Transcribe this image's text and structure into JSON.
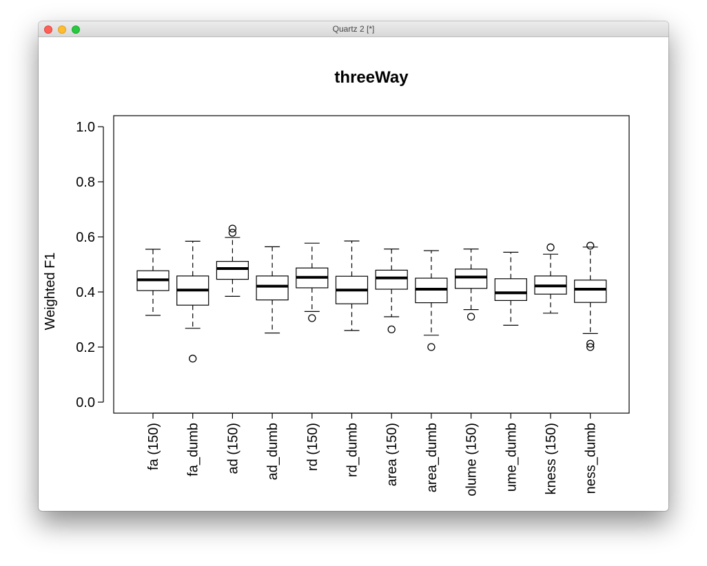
{
  "window": {
    "title": "Quartz 2 [*]"
  },
  "chart_data": {
    "type": "boxplot",
    "title": "threeWay",
    "xlabel": "",
    "ylabel": "Weighted F1",
    "ylim": [
      0.0,
      1.0
    ],
    "yticks": [
      "0.0",
      "0.2",
      "0.4",
      "0.6",
      "0.8",
      "1.0"
    ],
    "grid": false,
    "categories": [
      "fa (150)",
      "fa_dumb",
      "ad (150)",
      "ad_dumb",
      "rd (150)",
      "rd_dumb",
      "area (150)",
      "area_dumb",
      "olume (150)",
      "ume_dumb",
      "kness (150)",
      "ness_dumb"
    ],
    "boxes": [
      {
        "whisker_low": 0.315,
        "q1": 0.405,
        "median": 0.444,
        "q3": 0.477,
        "whisker_high": 0.555,
        "outliers": []
      },
      {
        "whisker_low": 0.268,
        "q1": 0.352,
        "median": 0.407,
        "q3": 0.458,
        "whisker_high": 0.584,
        "outliers": [
          0.158
        ]
      },
      {
        "whisker_low": 0.384,
        "q1": 0.446,
        "median": 0.485,
        "q3": 0.511,
        "whisker_high": 0.598,
        "outliers": [
          0.615,
          0.63
        ]
      },
      {
        "whisker_low": 0.251,
        "q1": 0.371,
        "median": 0.421,
        "q3": 0.458,
        "whisker_high": 0.564,
        "outliers": []
      },
      {
        "whisker_low": 0.329,
        "q1": 0.415,
        "median": 0.453,
        "q3": 0.487,
        "whisker_high": 0.577,
        "outliers": [
          0.305
        ]
      },
      {
        "whisker_low": 0.26,
        "q1": 0.357,
        "median": 0.407,
        "q3": 0.457,
        "whisker_high": 0.585,
        "outliers": []
      },
      {
        "whisker_low": 0.31,
        "q1": 0.41,
        "median": 0.451,
        "q3": 0.479,
        "whisker_high": 0.556,
        "outliers": [
          0.264
        ]
      },
      {
        "whisker_low": 0.243,
        "q1": 0.361,
        "median": 0.41,
        "q3": 0.45,
        "whisker_high": 0.55,
        "outliers": [
          0.2
        ]
      },
      {
        "whisker_low": 0.336,
        "q1": 0.413,
        "median": 0.454,
        "q3": 0.483,
        "whisker_high": 0.556,
        "outliers": [
          0.31
        ]
      },
      {
        "whisker_low": 0.279,
        "q1": 0.369,
        "median": 0.397,
        "q3": 0.448,
        "whisker_high": 0.544,
        "outliers": []
      },
      {
        "whisker_low": 0.323,
        "q1": 0.392,
        "median": 0.422,
        "q3": 0.458,
        "whisker_high": 0.537,
        "outliers": [
          0.562
        ]
      },
      {
        "whisker_low": 0.249,
        "q1": 0.362,
        "median": 0.41,
        "q3": 0.443,
        "whisker_high": 0.563,
        "outliers": [
          0.2,
          0.212,
          0.568
        ]
      }
    ]
  }
}
